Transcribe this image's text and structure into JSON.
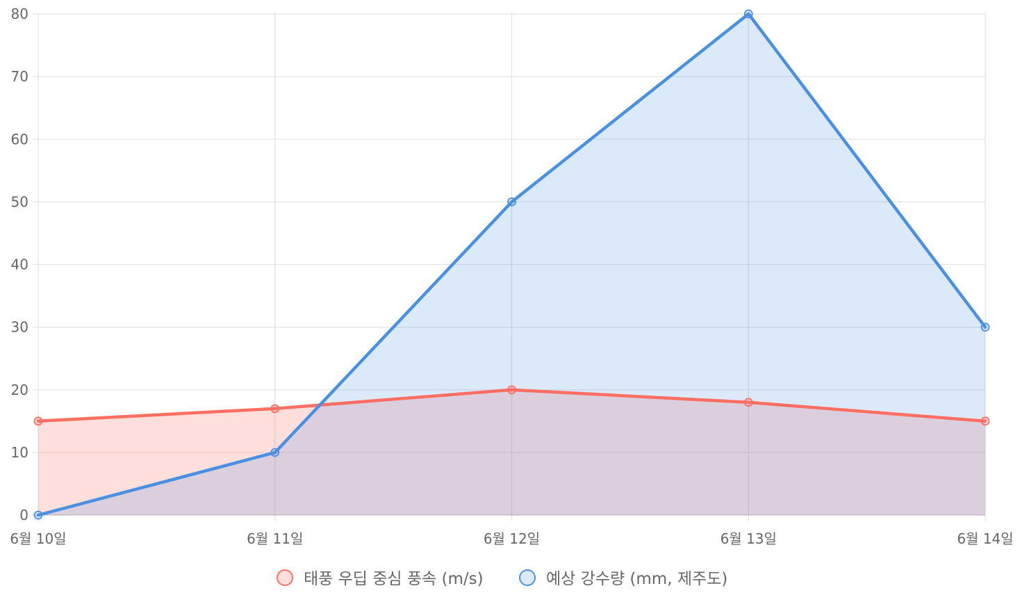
{
  "chart_data": {
    "type": "line",
    "categories": [
      "6월 10일",
      "6월 11일",
      "6월 12일",
      "6월 13일",
      "6월 14일"
    ],
    "series": [
      {
        "name": "태풍 우딥 중심 풍속 (m/s)",
        "values": [
          15,
          17,
          20,
          18,
          15
        ],
        "color": "#ff6f61",
        "fill": "rgba(255, 111, 97, 0.22)"
      },
      {
        "name": "예상 강수량 (mm, 제주도)",
        "values": [
          0,
          10,
          50,
          80,
          30
        ],
        "color": "#4a90e2",
        "fill": "rgba(74, 144, 226, 0.20)"
      }
    ],
    "ylim": [
      0,
      80
    ],
    "yticks": [
      0,
      10,
      20,
      30,
      40,
      50,
      60,
      70,
      80
    ],
    "filled_area": true,
    "grid": true,
    "legend_position": "bottom"
  }
}
